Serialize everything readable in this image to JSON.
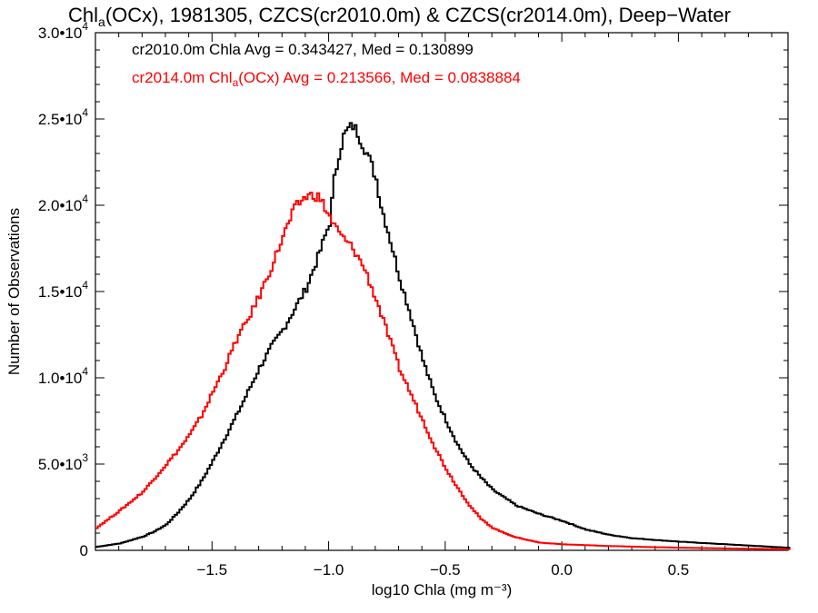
{
  "chart_data": {
    "type": "line",
    "title": "Chla(OCx), 1981305, CZCS(cr2010.0m) & CZCS(cr2014.0m), Deep-Water",
    "title_parts": {
      "a": "Chl",
      "sub": "a",
      "b": "(OCx), 1981305, CZCS(cr2010.0m) & CZCS(cr2014.0m), Deep−Water"
    },
    "xlabel": "log10 Chla (mg m⁻³)",
    "ylabel": "Number of Observations",
    "xlim": [
      -2.0,
      0.97
    ],
    "ylim": [
      0,
      30000
    ],
    "x_ticks": [
      {
        "value": -1.5,
        "label": "−1.5"
      },
      {
        "value": -1.0,
        "label": "−1.0"
      },
      {
        "value": -0.5,
        "label": "−0.5"
      },
      {
        "value": 0.0,
        "label": "0.0"
      },
      {
        "value": 0.5,
        "label": "0.5"
      }
    ],
    "y_ticks": [
      {
        "value": 0,
        "mant": "0",
        "exp": ""
      },
      {
        "value": 5000,
        "mant": "5.0•10",
        "exp": "3"
      },
      {
        "value": 10000,
        "mant": "1.0•10",
        "exp": "4"
      },
      {
        "value": 15000,
        "mant": "1.5•10",
        "exp": "4"
      },
      {
        "value": 20000,
        "mant": "2.0•10",
        "exp": "4"
      },
      {
        "value": 25000,
        "mant": "2.5•10",
        "exp": "4"
      },
      {
        "value": 30000,
        "mant": "3.0•10",
        "exp": "4"
      }
    ],
    "legend": {
      "placement": "top-left",
      "line1": "cr2010.0m Chla Avg = 0.343427, Med = 0.130899",
      "line2_parts": {
        "a": "cr2014.0m Chl",
        "sub": "a",
        "b": "(OCx) Avg = 0.213566, Med = 0.0838884"
      }
    },
    "series": [
      {
        "name": "cr2010.0m",
        "color": "#000000",
        "x": [
          -2.0,
          -1.9,
          -1.8,
          -1.75,
          -1.7,
          -1.65,
          -1.6,
          -1.55,
          -1.5,
          -1.45,
          -1.4,
          -1.35,
          -1.3,
          -1.25,
          -1.2,
          -1.15,
          -1.1,
          -1.05,
          -1.0,
          -0.98,
          -0.96,
          -0.94,
          -0.92,
          -0.9,
          -0.88,
          -0.86,
          -0.84,
          -0.82,
          -0.8,
          -0.78,
          -0.75,
          -0.7,
          -0.65,
          -0.6,
          -0.55,
          -0.5,
          -0.45,
          -0.4,
          -0.35,
          -0.3,
          -0.2,
          -0.1,
          0.0,
          0.1,
          0.2,
          0.3,
          0.5,
          0.7,
          0.97
        ],
        "y": [
          200,
          400,
          800,
          1100,
          1500,
          2200,
          3000,
          4000,
          5200,
          6500,
          7800,
          9200,
          10600,
          11800,
          12800,
          14000,
          15200,
          17000,
          19000,
          21500,
          23000,
          24000,
          24400,
          24600,
          24200,
          23600,
          23000,
          22300,
          21500,
          20000,
          18500,
          15800,
          13500,
          11000,
          9000,
          7500,
          6100,
          5000,
          4200,
          3500,
          2600,
          2100,
          1700,
          1200,
          900,
          700,
          500,
          350,
          150
        ]
      },
      {
        "name": "cr2014.0m",
        "color": "#ff0000",
        "x": [
          -2.0,
          -1.9,
          -1.8,
          -1.75,
          -1.7,
          -1.65,
          -1.6,
          -1.55,
          -1.5,
          -1.45,
          -1.4,
          -1.35,
          -1.3,
          -1.25,
          -1.2,
          -1.15,
          -1.12,
          -1.1,
          -1.07,
          -1.05,
          -1.03,
          -1.0,
          -0.98,
          -0.95,
          -0.9,
          -0.85,
          -0.8,
          -0.75,
          -0.7,
          -0.65,
          -0.6,
          -0.55,
          -0.5,
          -0.45,
          -0.4,
          -0.35,
          -0.3,
          -0.25,
          -0.2,
          -0.1,
          0.0,
          0.2,
          0.4,
          0.6,
          0.97
        ],
        "y": [
          1300,
          2300,
          3400,
          4200,
          5000,
          5800,
          6700,
          7800,
          9200,
          10600,
          12200,
          13400,
          14800,
          16400,
          18200,
          19800,
          20300,
          20500,
          20600,
          20500,
          20100,
          19300,
          18800,
          18200,
          17500,
          16300,
          14500,
          12500,
          10500,
          9000,
          7500,
          6000,
          4700,
          3600,
          2600,
          1800,
          1300,
          1000,
          750,
          450,
          350,
          250,
          180,
          130,
          60
        ]
      }
    ]
  }
}
